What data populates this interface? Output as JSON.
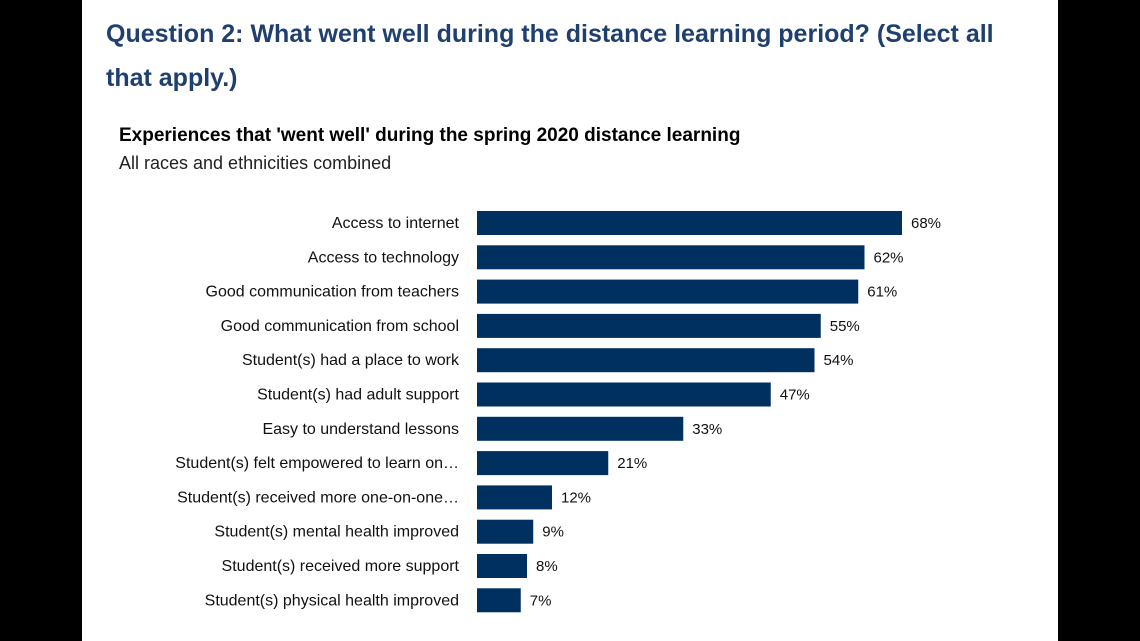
{
  "question": "Question 2: What went well during the distance learning period? (Select all that apply.)",
  "chart_data": {
    "type": "bar",
    "orientation": "horizontal",
    "title": "Experiences that 'went well' during the spring 2020 distance learning",
    "subtitle": "All races and ethnicities combined",
    "categories": [
      "Access to internet",
      "Access to technology",
      "Good communication from teachers",
      "Good communication from school",
      "Student(s) had a place to work",
      "Student(s) had adult support",
      "Easy to understand lessons",
      "Student(s) felt empowered to learn on…",
      "Student(s) received more one-on-one…",
      "Student(s) mental health improved",
      "Student(s) received more support",
      "Student(s) physical health improved"
    ],
    "values": [
      68,
      62,
      61,
      55,
      54,
      47,
      33,
      21,
      12,
      9,
      8,
      7
    ],
    "value_labels": [
      "68%",
      "62%",
      "61%",
      "55%",
      "54%",
      "47%",
      "33%",
      "21%",
      "12%",
      "9%",
      "8%",
      "7%"
    ],
    "xlim": [
      0,
      100
    ],
    "bar_color": "#003060",
    "grid": false,
    "legend": "none"
  }
}
